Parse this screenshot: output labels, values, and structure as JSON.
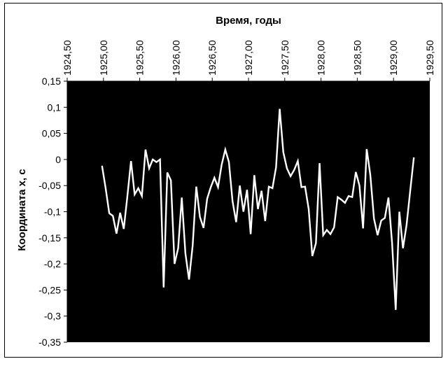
{
  "chart_data": {
    "type": "line",
    "title": "",
    "xlabel": "Время, годы",
    "ylabel": "Координата x, с",
    "xlim": [
      1924.5,
      1929.5
    ],
    "ylim": [
      -0.35,
      0.15
    ],
    "x_ticks": [
      1924.5,
      1925.0,
      1925.5,
      1926.0,
      1926.5,
      1927.0,
      1927.5,
      1928.0,
      1928.5,
      1929.0,
      1929.5
    ],
    "x_tick_labels": [
      "1924,50",
      "1925,00",
      "1925,50",
      "1926,00",
      "1926,50",
      "1927,00",
      "1927,50",
      "1928,00",
      "1928,50",
      "1929,00",
      "1929,50"
    ],
    "y_ticks": [
      0.15,
      0.1,
      0.05,
      0,
      -0.05,
      -0.1,
      -0.15,
      -0.2,
      -0.25,
      -0.3,
      -0.35
    ],
    "y_tick_labels": [
      "0,15",
      "0,1",
      "0,05",
      "0",
      "-0,05",
      "-0,1",
      "-0,15",
      "-0,2",
      "-0,25",
      "-0,3",
      "-0,35"
    ],
    "x_axis_position": "top",
    "grid": false,
    "plot_background": "#000000",
    "line_color": "#ffffff",
    "series": [
      {
        "x": [
          1924.98,
          1925.03,
          1925.08,
          1925.13,
          1925.18,
          1925.23,
          1925.28,
          1925.33,
          1925.38,
          1925.43,
          1925.48,
          1925.53,
          1925.58,
          1925.63,
          1925.68,
          1925.73,
          1925.78,
          1925.83,
          1925.88,
          1925.93,
          1925.98,
          1926.03,
          1926.08,
          1926.13,
          1926.18,
          1926.23,
          1926.28,
          1926.33,
          1926.38,
          1926.43,
          1926.48,
          1926.53,
          1926.58,
          1926.63,
          1926.68,
          1926.73,
          1926.78,
          1926.83,
          1926.88,
          1926.93,
          1926.98,
          1927.03,
          1927.08,
          1927.13,
          1927.18,
          1927.23,
          1927.28,
          1927.33,
          1927.38,
          1927.43,
          1927.48,
          1927.53,
          1927.58,
          1927.63,
          1927.68,
          1927.73,
          1927.78,
          1927.83,
          1927.88,
          1927.93,
          1927.98,
          1928.03,
          1928.08,
          1928.13,
          1928.18,
          1928.23,
          1928.28,
          1928.33,
          1928.38,
          1928.43,
          1928.48,
          1928.53,
          1928.58,
          1928.63,
          1928.68,
          1928.73,
          1928.78,
          1928.83,
          1928.88,
          1928.93,
          1928.98,
          1929.03,
          1929.08,
          1929.13,
          1929.18,
          1929.23,
          1929.28
        ],
        "y": [
          -0.012,
          -0.055,
          -0.103,
          -0.108,
          -0.142,
          -0.102,
          -0.133,
          -0.07,
          -0.003,
          -0.067,
          -0.055,
          -0.07,
          0.019,
          -0.017,
          0.0,
          -0.005,
          0.0,
          -0.245,
          -0.025,
          -0.04,
          -0.2,
          -0.17,
          -0.073,
          -0.18,
          -0.23,
          -0.165,
          -0.052,
          -0.11,
          -0.131,
          -0.075,
          -0.053,
          -0.035,
          -0.053,
          -0.01,
          0.019,
          -0.005,
          -0.08,
          -0.12,
          -0.05,
          -0.1,
          -0.058,
          -0.143,
          -0.03,
          -0.095,
          -0.06,
          -0.118,
          -0.052,
          -0.055,
          -0.015,
          0.097,
          0.014,
          -0.017,
          -0.032,
          -0.02,
          -0.003,
          -0.053,
          -0.052,
          -0.095,
          -0.185,
          -0.16,
          -0.007,
          -0.145,
          -0.135,
          -0.143,
          -0.13,
          -0.072,
          -0.077,
          -0.083,
          -0.07,
          -0.072,
          -0.024,
          -0.05,
          -0.132,
          0.02,
          -0.03,
          -0.113,
          -0.145,
          -0.117,
          -0.112,
          -0.073,
          -0.16,
          -0.288,
          -0.1,
          -0.17,
          -0.125,
          -0.06,
          0.004
        ]
      }
    ]
  }
}
